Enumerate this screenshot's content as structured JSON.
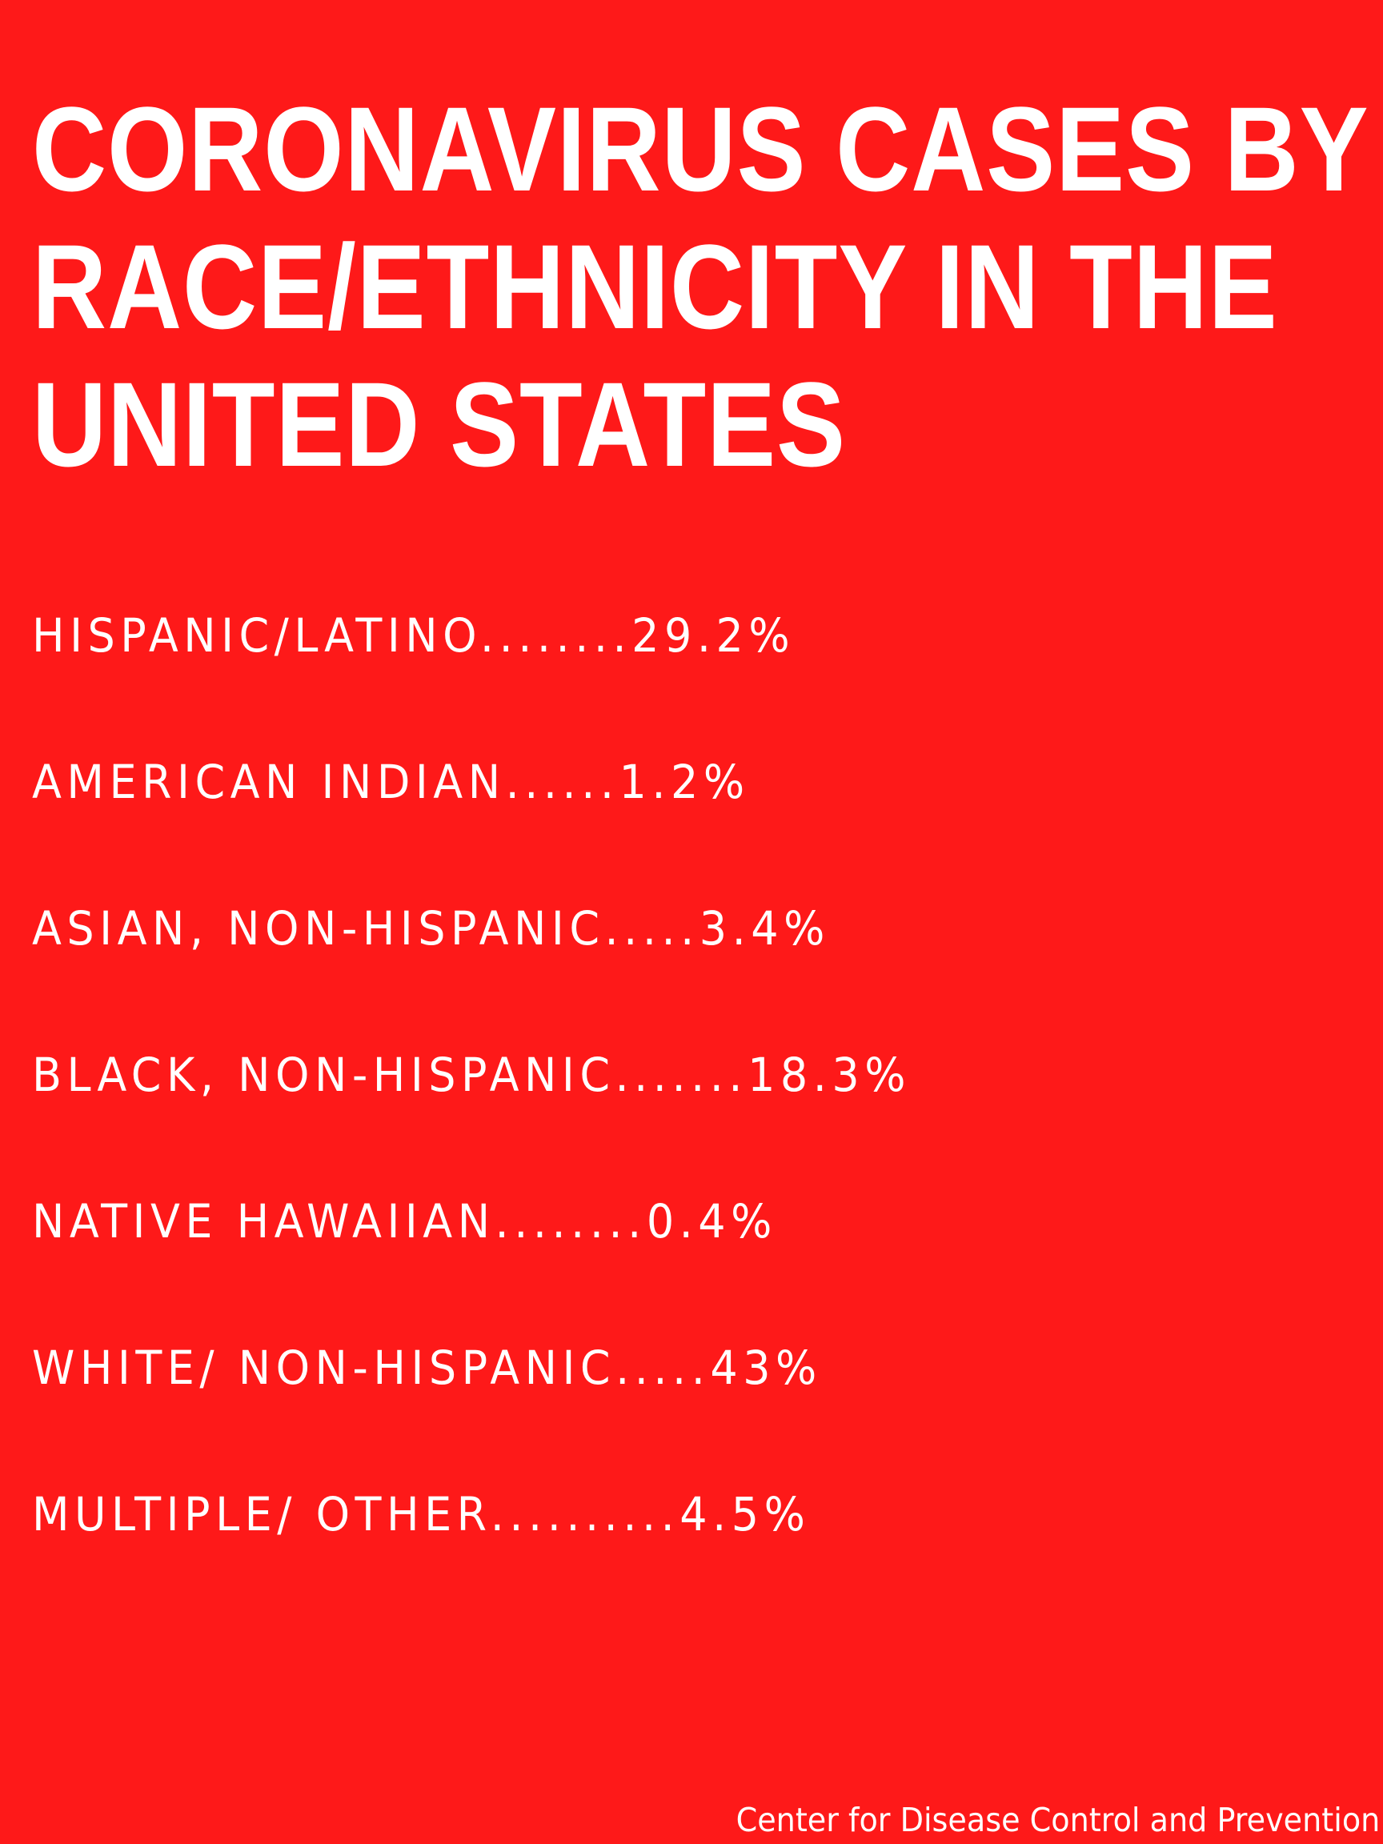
{
  "colors": {
    "background": "#fe1919",
    "text": "#ffffff"
  },
  "title": {
    "lines": [
      "CORONAVIRUS CASES BY",
      "RACE/ETHNICITY IN THE",
      "UNITED STATES"
    ]
  },
  "stats": [
    {
      "label": "HISPANIC/LATINO",
      "leader": "........",
      "value": "29.2%"
    },
    {
      "label": "AMERICAN INDIAN",
      "leader": "......",
      "value": "1.2%"
    },
    {
      "label": "ASIAN, NON-HISPANIC",
      "leader": ".....",
      "value": "3.4%"
    },
    {
      "label": "BLACK, NON-HISPANIC",
      "leader": ".......",
      "value": "18.3%"
    },
    {
      "label": "NATIVE HAWAIIAN",
      "leader": "........",
      "value": "0.4%"
    },
    {
      "label": "WHITE/ NON-HISPANIC",
      "leader": ".....",
      "value": "43%"
    },
    {
      "label": "MULTIPLE/ OTHER",
      "leader": "..........",
      "value": "4.5%"
    }
  ],
  "source": "Center for Disease Control and Prevention"
}
